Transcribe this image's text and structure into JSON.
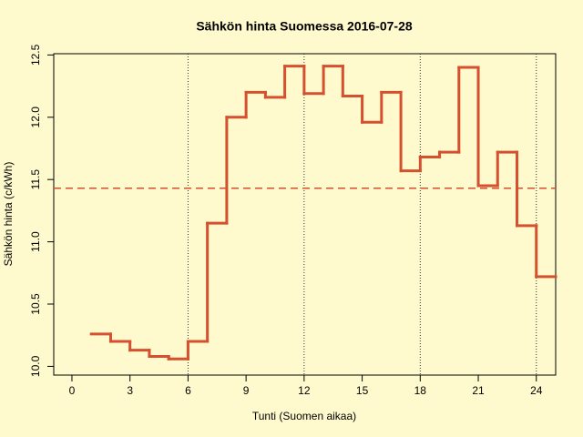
{
  "chart_data": {
    "type": "step",
    "title": "Sähkön hinta Suomessa 2016-07-28",
    "xlabel": "Tunti (Suomen aikaa)",
    "ylabel": "Sähkön hinta (c/kWh)",
    "x": [
      1,
      2,
      3,
      4,
      5,
      6,
      7,
      8,
      9,
      10,
      11,
      12,
      13,
      14,
      15,
      16,
      17,
      18,
      19,
      20,
      21,
      22,
      23,
      24
    ],
    "values": [
      10.26,
      10.2,
      10.13,
      10.08,
      10.06,
      10.2,
      11.15,
      12.0,
      12.2,
      12.16,
      12.41,
      12.19,
      12.41,
      12.17,
      11.96,
      12.2,
      11.57,
      11.68,
      11.72,
      12.4,
      11.45,
      11.72,
      11.13,
      10.72
    ],
    "color": "#d4502f",
    "mean": 11.43,
    "mean_color": "#d4502f",
    "vlines": [
      6,
      12,
      18,
      24
    ],
    "xlim": [
      -0.94,
      25
    ],
    "ylim": [
      9.93,
      12.51
    ],
    "xticks": [
      0,
      3,
      6,
      9,
      12,
      15,
      18,
      21,
      24
    ],
    "yticks": [
      {
        "value": 10,
        "label": "10.0"
      },
      10.5,
      {
        "value": 11,
        "label": "11.0"
      },
      11.5,
      {
        "value": 12,
        "label": "12.0"
      },
      12.5
    ]
  }
}
